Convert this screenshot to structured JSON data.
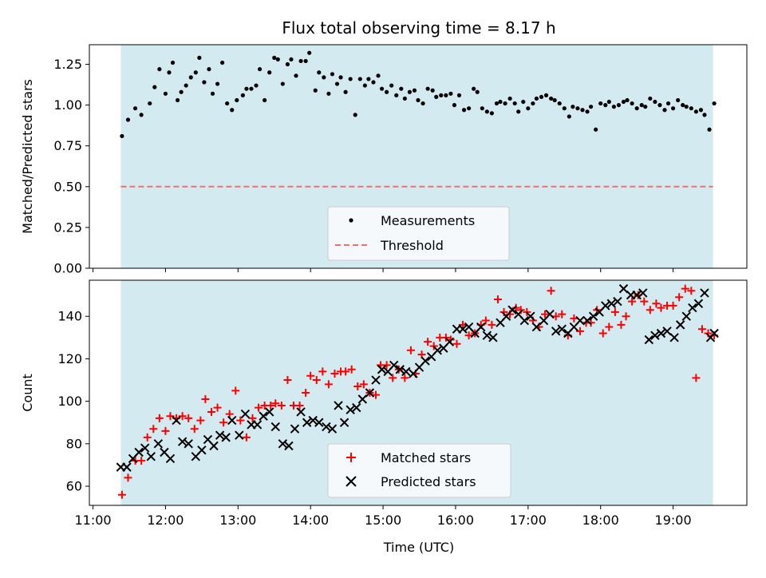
{
  "chart_data": [
    {
      "type": "scatter",
      "title": "Flux total observing time = 8.17 h",
      "xlabel": "",
      "ylabel": "Matched/Predicted stars",
      "ylim": [
        0,
        1.37
      ],
      "yticks": [
        "0.00",
        "0.25",
        "0.50",
        "0.75",
        "1.00",
        "1.25"
      ],
      "observing_window_utc": [
        "11:23",
        "19:33"
      ],
      "shade_color": "#d4eaf1",
      "threshold": 0.5,
      "legend_position": "lower center",
      "series": [
        {
          "name": "Measurements",
          "marker": "dot",
          "color": "#000000",
          "x": [
            "11:24",
            "11:29",
            "11:35",
            "11:40",
            "11:47",
            "11:51",
            "11:55",
            "12:00",
            "12:03",
            "12:06",
            "12:10",
            "12:13",
            "12:17",
            "12:21",
            "12:25",
            "12:28",
            "12:32",
            "12:36",
            "12:39",
            "12:43",
            "12:47",
            "12:51",
            "12:55",
            "12:59",
            "13:04",
            "13:07",
            "13:11",
            "13:15",
            "13:18",
            "13:22",
            "13:26",
            "13:30",
            "13:33",
            "13:37",
            "13:41",
            "13:44",
            "13:48",
            "13:52",
            "13:56",
            "13:59",
            "14:04",
            "14:07",
            "14:11",
            "14:15",
            "14:18",
            "14:22",
            "14:25",
            "14:29",
            "14:33",
            "14:37",
            "14:41",
            "14:45",
            "14:48",
            "14:52",
            "14:56",
            "14:59",
            "15:03",
            "15:07",
            "15:11",
            "15:15",
            "15:18",
            "15:22",
            "15:26",
            "15:29",
            "15:33",
            "15:37",
            "15:41",
            "15:44",
            "15:48",
            "15:52",
            "15:56",
            "15:59",
            "16:03",
            "16:07",
            "16:11",
            "16:15",
            "16:18",
            "16:22",
            "16:26",
            "16:30",
            "16:34",
            "16:37",
            "16:41",
            "16:45",
            "16:49",
            "16:52",
            "16:56",
            "17:00",
            "17:04",
            "17:07",
            "17:11",
            "17:15",
            "17:19",
            "17:22",
            "17:26",
            "17:30",
            "17:34",
            "17:37",
            "17:41",
            "17:45",
            "17:49",
            "17:52",
            "17:56",
            "18:00",
            "18:04",
            "18:07",
            "18:11",
            "18:15",
            "18:19",
            "18:22",
            "18:26",
            "18:30",
            "18:34",
            "18:37",
            "18:41",
            "18:45",
            "18:49",
            "18:53",
            "18:56",
            "19:00",
            "19:04",
            "19:08",
            "19:11",
            "19:15",
            "19:19",
            "19:23",
            "19:26",
            "19:30",
            "19:34"
          ],
          "y": [
            0.81,
            0.91,
            0.98,
            0.94,
            1.01,
            1.11,
            1.22,
            1.07,
            1.2,
            1.26,
            1.03,
            1.08,
            1.12,
            1.17,
            1.2,
            1.29,
            1.14,
            1.22,
            1.07,
            1.13,
            1.26,
            1.01,
            0.97,
            1.03,
            1.06,
            1.1,
            1.1,
            1.12,
            1.22,
            1.03,
            1.2,
            1.29,
            1.28,
            1.13,
            1.25,
            1.28,
            1.18,
            1.27,
            1.27,
            1.32,
            1.09,
            1.2,
            1.17,
            1.07,
            1.19,
            1.13,
            1.17,
            1.08,
            1.16,
            0.94,
            1.16,
            1.12,
            1.16,
            1.14,
            1.18,
            1.1,
            1.08,
            1.12,
            1.06,
            1.1,
            1.04,
            1.08,
            1.09,
            1.03,
            1.01,
            1.1,
            1.09,
            1.05,
            1.06,
            1.06,
            1.07,
            1.0,
            1.06,
            0.97,
            0.98,
            1.1,
            1.08,
            0.98,
            0.96,
            0.95,
            1.01,
            1.02,
            1.01,
            1.04,
            1.01,
            0.96,
            1.02,
            0.98,
            1.01,
            1.04,
            1.05,
            1.06,
            1.04,
            1.03,
            1.01,
            0.98,
            0.93,
            0.99,
            0.98,
            0.97,
            0.96,
            0.99,
            0.85,
            1.01,
            1.0,
            1.02,
            0.99,
            1.0,
            1.02,
            1.03,
            1.01,
            0.98,
            1.0,
            0.99,
            1.04,
            1.02,
            1.0,
            0.97,
            1.01,
            0.98,
            1.03,
            1.0,
            0.99,
            0.98,
            0.96,
            0.97,
            0.94,
            0.85,
            1.01
          ]
        },
        {
          "name": "Threshold",
          "type": "hline",
          "style": "dashed",
          "color": "#f07070",
          "y": 0.5
        }
      ]
    },
    {
      "type": "scatter",
      "xlabel": "Time (UTC)",
      "ylabel": "Count",
      "ylim": [
        51,
        157
      ],
      "yticks": [
        "60",
        "80",
        "100",
        "120",
        "140"
      ],
      "xticks": [
        "11:00",
        "12:00",
        "13:00",
        "14:00",
        "15:00",
        "16:00",
        "17:00",
        "18:00",
        "19:00"
      ],
      "observing_window_utc": [
        "11:23",
        "19:33"
      ],
      "shade_color": "#d4eaf1",
      "legend_position": "lower center",
      "series": [
        {
          "name": "Matched stars",
          "marker": "plus",
          "color": "#ff0000",
          "x": [
            "11:24",
            "11:29",
            "11:35",
            "11:40",
            "11:45",
            "11:50",
            "11:55",
            "12:00",
            "12:04",
            "12:09",
            "12:14",
            "12:19",
            "12:24",
            "12:29",
            "12:33",
            "12:38",
            "12:43",
            "12:48",
            "12:53",
            "12:58",
            "13:02",
            "13:07",
            "13:12",
            "13:17",
            "13:22",
            "13:27",
            "13:31",
            "13:36",
            "13:41",
            "13:46",
            "13:51",
            "13:56",
            "14:00",
            "14:05",
            "14:10",
            "14:15",
            "14:20",
            "14:25",
            "14:29",
            "14:34",
            "14:39",
            "14:44",
            "14:49",
            "14:54",
            "14:58",
            "15:03",
            "15:08",
            "15:13",
            "15:18",
            "15:23",
            "15:27",
            "15:32",
            "15:37",
            "15:42",
            "15:47",
            "15:52",
            "15:56",
            "16:01",
            "16:06",
            "16:11",
            "16:16",
            "16:21",
            "16:25",
            "16:30",
            "16:35",
            "16:40",
            "16:45",
            "16:50",
            "16:54",
            "16:59",
            "17:04",
            "17:09",
            "17:14",
            "17:19",
            "17:23",
            "17:28",
            "17:33",
            "17:38",
            "17:43",
            "17:48",
            "17:52",
            "17:57",
            "18:02",
            "18:07",
            "18:12",
            "18:17",
            "18:21",
            "18:26",
            "18:31",
            "18:36",
            "18:41",
            "18:46",
            "18:50",
            "18:55",
            "19:00",
            "19:05",
            "19:10",
            "19:15",
            "19:19",
            "19:24",
            "19:29",
            "19:34"
          ],
          "y": [
            56,
            64,
            72,
            72,
            83,
            87,
            92,
            86,
            93,
            92,
            93,
            92,
            87,
            91,
            101,
            95,
            97,
            90,
            94,
            105,
            91,
            83,
            92,
            97,
            98,
            98,
            99,
            98,
            110,
            98,
            98,
            104,
            112,
            110,
            114,
            108,
            113,
            114,
            114,
            115,
            107,
            108,
            104,
            103,
            117,
            117,
            111,
            115,
            111,
            124,
            113,
            122,
            128,
            126,
            130,
            130,
            129,
            127,
            136,
            131,
            132,
            136,
            138,
            136,
            148,
            142,
            141,
            144,
            143,
            142,
            138,
            135,
            141,
            152,
            140,
            141,
            131,
            139,
            133,
            137,
            137,
            143,
            132,
            135,
            142,
            136,
            140,
            147,
            150,
            147,
            143,
            146,
            144,
            145,
            145,
            149,
            153,
            152,
            111,
            134,
            132,
            131
          ]
        },
        {
          "name": "Predicted stars",
          "marker": "x",
          "color": "#000000",
          "x": [
            "11:23",
            "11:28",
            "11:33",
            "11:38",
            "11:43",
            "11:48",
            "11:54",
            "11:59",
            "12:04",
            "12:09",
            "12:14",
            "12:19",
            "12:25",
            "12:30",
            "12:35",
            "12:40",
            "12:45",
            "12:50",
            "12:55",
            "13:01",
            "13:06",
            "13:11",
            "13:16",
            "13:21",
            "13:26",
            "13:31",
            "13:37",
            "13:42",
            "13:47",
            "13:52",
            "13:57",
            "14:02",
            "14:07",
            "14:13",
            "14:18",
            "14:23",
            "14:28",
            "14:33",
            "14:38",
            "14:43",
            "14:49",
            "14:54",
            "14:59",
            "15:04",
            "15:09",
            "15:14",
            "15:19",
            "15:25",
            "15:30",
            "15:35",
            "15:40",
            "15:45",
            "15:50",
            "15:55",
            "16:01",
            "16:06",
            "16:11",
            "16:16",
            "16:21",
            "16:26",
            "16:31",
            "16:37",
            "16:42",
            "16:47",
            "16:52",
            "16:57",
            "17:02",
            "17:07",
            "17:13",
            "17:18",
            "17:23",
            "17:28",
            "17:33",
            "17:38",
            "17:43",
            "17:49",
            "17:54",
            "17:59",
            "18:04",
            "18:09",
            "18:14",
            "18:19",
            "18:25",
            "18:30",
            "18:35",
            "18:40",
            "18:45",
            "18:50",
            "18:55",
            "19:01",
            "19:06",
            "19:11",
            "19:16",
            "19:21",
            "19:26",
            "19:31",
            "19:34"
          ],
          "y": [
            69,
            69,
            73,
            76,
            78,
            74,
            80,
            76,
            73,
            91,
            81,
            80,
            74,
            77,
            82,
            79,
            84,
            83,
            91,
            84,
            94,
            89,
            89,
            93,
            95,
            88,
            80,
            79,
            87,
            95,
            90,
            91,
            90,
            88,
            87,
            98,
            90,
            96,
            97,
            101,
            104,
            110,
            115,
            114,
            117,
            115,
            114,
            113,
            116,
            119,
            121,
            124,
            125,
            128,
            134,
            134,
            135,
            132,
            135,
            131,
            130,
            137,
            140,
            143,
            141,
            138,
            140,
            135,
            138,
            141,
            133,
            134,
            132,
            135,
            138,
            138,
            140,
            142,
            145,
            146,
            147,
            153,
            150,
            150,
            151,
            129,
            131,
            132,
            133,
            130,
            136,
            140,
            144,
            146,
            151,
            130,
            132
          ]
        }
      ]
    }
  ]
}
